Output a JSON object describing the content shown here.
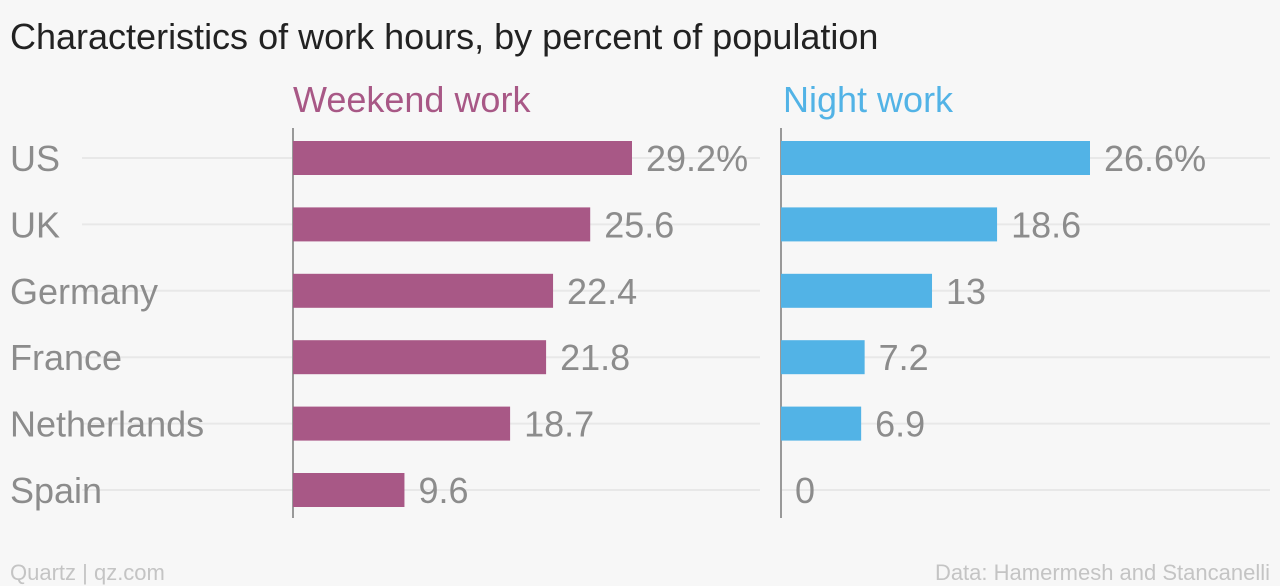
{
  "title": "Characteristics of work hours, by percent of population",
  "footer": {
    "source_left": "Quartz | qz.com",
    "source_right": "Data: Hamermesh and Stancanelli"
  },
  "colors": {
    "weekend": "#a85886",
    "night": "#52b3e6",
    "title": "#222222",
    "label": "#8c8c8c",
    "gridline": "#e8e8e8",
    "axis": "#999999",
    "footer": "#c4c4c4",
    "background": "#f7f7f7"
  },
  "chart_data": {
    "type": "bar",
    "orientation": "horizontal",
    "title": "Characteristics of work hours, by percent of population",
    "categories": [
      "US",
      "UK",
      "Germany",
      "France",
      "Netherlands",
      "Spain"
    ],
    "series": [
      {
        "name": "Weekend work",
        "values": [
          29.2,
          25.6,
          22.4,
          21.8,
          18.7,
          9.6
        ],
        "value_labels": [
          "29.2%",
          "25.6",
          "22.4",
          "21.8",
          "18.7",
          "9.6"
        ],
        "color": "#a85886"
      },
      {
        "name": "Night work",
        "values": [
          26.6,
          18.6,
          13,
          7.2,
          6.9,
          0
        ],
        "value_labels": [
          "26.6%",
          "18.6",
          "13",
          "7.2",
          "6.9",
          "0"
        ],
        "color": "#52b3e6"
      }
    ],
    "layout": "small-multiples",
    "grid": true,
    "legend": "none"
  }
}
